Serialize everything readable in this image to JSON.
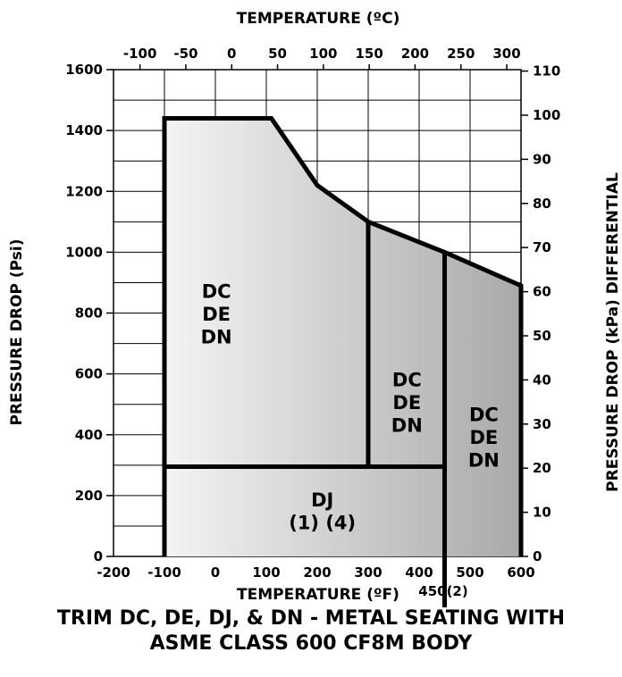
{
  "chart_data": {
    "type": "area",
    "title": "TRIM DC, DE, DJ, & DN - METAL SEATING WITH",
    "subtitle": "ASME CLASS 600 CF8M BODY",
    "xlabel_bottom": "TEMPERATURE (ºF)",
    "xlabel_top": "TEMPERATURE (ºC)",
    "ylabel_left": "PRESSURE DROP (Psi)",
    "ylabel_right": "PRESSURE DROP (kPa) DIFFERENTIAL",
    "x_range_F": [
      -200,
      600
    ],
    "y_range_psi": [
      0,
      1600
    ],
    "x_ticks_F": [
      "-200",
      "-100",
      "0",
      "100",
      "200",
      "300",
      "400",
      "500",
      "600"
    ],
    "x_ticks_C": [
      "-100",
      "-50",
      "0",
      "50",
      "100",
      "150",
      "200",
      "250",
      "300"
    ],
    "y_ticks_psi": [
      "0",
      "200",
      "400",
      "600",
      "800",
      "1000",
      "1200",
      "1400",
      "1600"
    ],
    "y_ticks_kpa": [
      "0",
      "10",
      "20",
      "30",
      "40",
      "50",
      "60",
      "70",
      "80",
      "90",
      "100",
      "110"
    ],
    "grid": true,
    "envelope": {
      "x_F": [
        -100,
        -100,
        110,
        200,
        300,
        450,
        600,
        600
      ],
      "y_psi": [
        0,
        1440,
        1440,
        1220,
        1100,
        1000,
        890,
        0
      ]
    },
    "dividers": [
      {
        "x_F": [
          -100,
          450
        ],
        "y_psi": [
          295,
          295
        ]
      },
      {
        "x_F": [
          300,
          300
        ],
        "y_psi": [
          295,
          1100
        ]
      },
      {
        "x_F": [
          450,
          450
        ],
        "y_psi": [
          -170,
          1000
        ]
      }
    ],
    "regions": [
      {
        "lines": [
          "DC",
          "DE",
          "DN"
        ],
        "x_F": 2,
        "y_psi": 850
      },
      {
        "lines": [
          "DC",
          "DE",
          "DN"
        ],
        "x_F": 376,
        "y_psi": 560
      },
      {
        "lines": [
          "DC",
          "DE",
          "DN"
        ],
        "x_F": 527,
        "y_psi": 445
      },
      {
        "lines": [
          "DJ",
          "(1) (4)"
        ],
        "x_F": 210,
        "y_psi": 165
      }
    ],
    "marker_label": "450(2)",
    "colors": {
      "line": "#000000",
      "grid": "#000000",
      "fill_light": "#f4f4f4",
      "fill_dark": "#a9a9a9"
    }
  }
}
